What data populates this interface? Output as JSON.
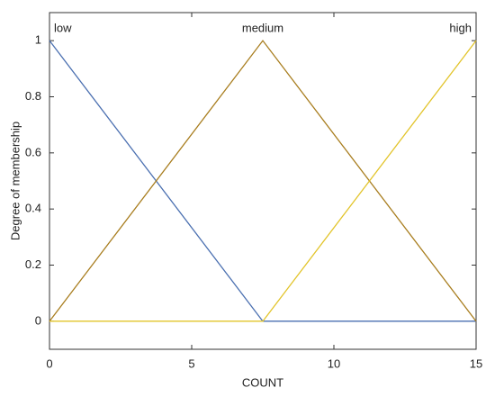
{
  "chart_data": {
    "type": "line",
    "xlabel": "COUNT",
    "ylabel": "Degree of membership",
    "x": [
      0,
      7.5,
      15
    ],
    "series": [
      {
        "name": "low",
        "color": "#4a6fb0",
        "values": [
          1,
          0,
          0
        ]
      },
      {
        "name": "medium",
        "color": "#a87d1e",
        "values": [
          0,
          1,
          0
        ]
      },
      {
        "name": "high",
        "color": "#e2c42a",
        "values": [
          0,
          0,
          1
        ]
      }
    ],
    "xlim": [
      0,
      15
    ],
    "xticks": [
      0,
      5,
      10,
      15
    ],
    "ylim": [
      -0.1,
      1.1
    ],
    "yticks": [
      0,
      0.2,
      0.4,
      0.6,
      0.8,
      1
    ],
    "grid": false
  }
}
